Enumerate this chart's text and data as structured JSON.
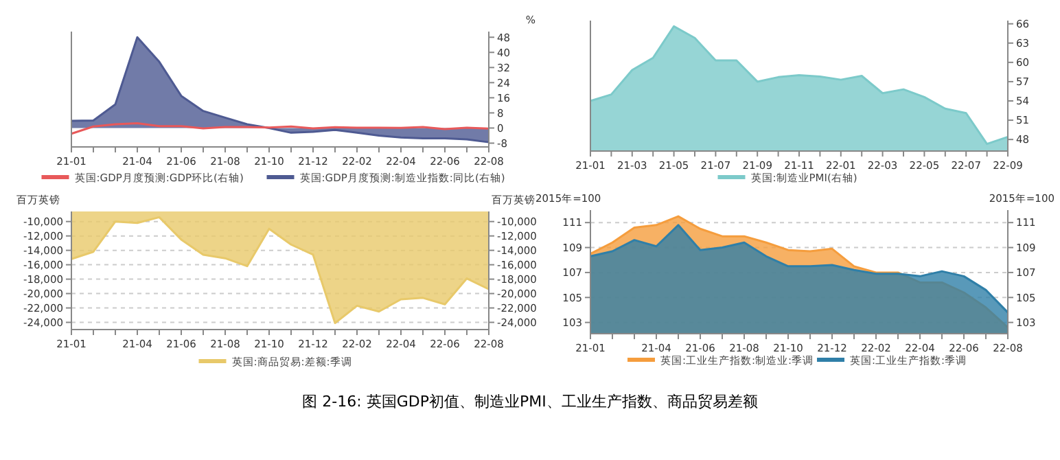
{
  "chart_data": [
    {
      "type": "area",
      "categories": [
        "21-01",
        null,
        null,
        "21-04",
        null,
        "21-06",
        null,
        "21-08",
        null,
        "21-10",
        null,
        "21-12",
        null,
        "22-02",
        null,
        "22-04",
        null,
        "22-06",
        null,
        "22-08"
      ],
      "y2label": "%",
      "y2lim": [
        -10,
        51
      ],
      "y2ticks": [
        -8,
        0,
        8,
        16,
        24,
        32,
        40,
        48
      ],
      "legend": "bottom",
      "annotations": [
        "图 2-16: 英国GDP初值、制造业PMI、工业生产指数、商品贸易差额"
      ],
      "series": [
        {
          "name": "英国:GDP月度预测:GDP环比(右轴)",
          "type": "line",
          "axis": "y2",
          "color": "#e8595a",
          "values": [
            -3,
            0.8,
            2,
            2.5,
            1,
            1,
            -0.2,
            0.5,
            0.5,
            0.3,
            0.8,
            -0.2,
            0.4,
            0.2,
            0.2,
            0.1,
            0.5,
            -0.6,
            0.2,
            -0.3
          ]
        },
        {
          "name": "英国:GDP月度预测:制造业指数:同比(右轴)",
          "axis": "y2",
          "color": "#4e5a92",
          "values": [
            3.8,
            4,
            12.5,
            48,
            35,
            17,
            9,
            5.5,
            2,
            0,
            -2.5,
            -2,
            -1,
            -2.5,
            -4,
            -5,
            -5.5,
            -5.5,
            -6,
            -7.5
          ]
        }
      ]
    },
    {
      "type": "area",
      "categories": [
        "21-01",
        null,
        "21-03",
        null,
        "21-05",
        null,
        "21-07",
        null,
        "21-09",
        null,
        "21-11",
        null,
        "22-01",
        null,
        "22-03",
        null,
        "22-05",
        null,
        "22-07",
        null,
        "22-09"
      ],
      "y2lim": [
        46.2,
        66.5
      ],
      "y2ticks": [
        48,
        51,
        54,
        57,
        60,
        63,
        66
      ],
      "legend": "bottom",
      "series": [
        {
          "name": "英国:制造业PMI(右轴)",
          "axis": "y2",
          "color": "#7ccaca",
          "values": [
            54.0,
            55.0,
            58.8,
            60.7,
            65.6,
            63.8,
            60.3,
            60.3,
            57.0,
            57.7,
            58.0,
            57.8,
            57.3,
            57.9,
            55.2,
            55.8,
            54.6,
            52.8,
            52.1,
            47.3,
            48.4
          ]
        }
      ]
    },
    {
      "type": "area",
      "categories": [
        "21-01",
        null,
        null,
        "21-04",
        null,
        "21-06",
        null,
        "21-08",
        null,
        "21-10",
        null,
        "21-12",
        null,
        "22-02",
        null,
        "22-04",
        null,
        "22-06",
        null,
        "22-08"
      ],
      "ylabel": "百万英镑",
      "y2label": "百万英镑",
      "ylim": [
        -25000,
        -8600
      ],
      "yticks": [
        {
          "value": -24000,
          "label": "-24,000"
        },
        {
          "value": -22000,
          "label": "-22,000"
        },
        {
          "value": -20000,
          "label": "-20,000"
        },
        {
          "value": -18000,
          "label": "-18,000"
        },
        {
          "value": -16000,
          "label": "-16,000"
        },
        {
          "value": -14000,
          "label": "-14,000"
        },
        {
          "value": -12000,
          "label": "-12,000"
        },
        {
          "value": -10000,
          "label": "-10,000"
        }
      ],
      "y2lim": [
        -25000,
        -8600
      ],
      "y2ticks": [
        {
          "value": -24000,
          "label": "-24,000"
        },
        {
          "value": -22000,
          "label": "-22,000"
        },
        {
          "value": -20000,
          "label": "-20,000"
        },
        {
          "value": -18000,
          "label": "-18,000"
        },
        {
          "value": -16000,
          "label": "-16,000"
        },
        {
          "value": -14000,
          "label": "-14,000"
        },
        {
          "value": -12000,
          "label": "-12,000"
        },
        {
          "value": -10000,
          "label": "-10,000"
        }
      ],
      "grid": "y",
      "legend": "bottom",
      "series": [
        {
          "name": "英国:商品贸易:差额:季调",
          "color": "#e8c96a",
          "values": [
            -15200,
            -14200,
            -10000,
            -10200,
            -9400,
            -12500,
            -14600,
            -15100,
            -16200,
            -11000,
            -13200,
            -14600,
            -24100,
            -21700,
            -22500,
            -20800,
            -20600,
            -21500,
            -17900,
            -19400
          ]
        }
      ]
    },
    {
      "type": "area",
      "categories": [
        "21-01",
        null,
        null,
        "21-04",
        null,
        "21-06",
        null,
        "21-08",
        null,
        "21-10",
        null,
        "21-12",
        null,
        "22-02",
        null,
        "22-04",
        null,
        "22-06",
        null,
        "22-08"
      ],
      "ylabel": "2015年=100",
      "y2label": "2015年=100",
      "ylim": [
        102.1,
        112
      ],
      "yticks": [
        103,
        105,
        107,
        109,
        111
      ],
      "y2lim": [
        102.1,
        112
      ],
      "y2ticks": [
        103,
        105,
        107,
        109,
        111
      ],
      "grid": "y",
      "legend": "bottom",
      "series": [
        {
          "name": "英国:工业生产指数:制造业:季调",
          "color": "#f59d3d",
          "values": [
            108.5,
            109.4,
            110.6,
            110.8,
            111.5,
            110.5,
            109.9,
            109.9,
            109.4,
            108.8,
            108.7,
            108.9,
            107.5,
            107.0,
            107.0,
            106.2,
            106.2,
            105.4,
            104.2,
            102.6
          ]
        },
        {
          "name": "英国:工业生产指数:季调",
          "color": "#2f7fa8",
          "values": [
            108.3,
            108.7,
            109.6,
            109.1,
            110.8,
            108.8,
            109.0,
            109.4,
            108.3,
            107.5,
            107.5,
            107.6,
            107.2,
            106.9,
            106.9,
            106.7,
            107.1,
            106.7,
            105.6,
            103.8
          ]
        }
      ]
    }
  ]
}
